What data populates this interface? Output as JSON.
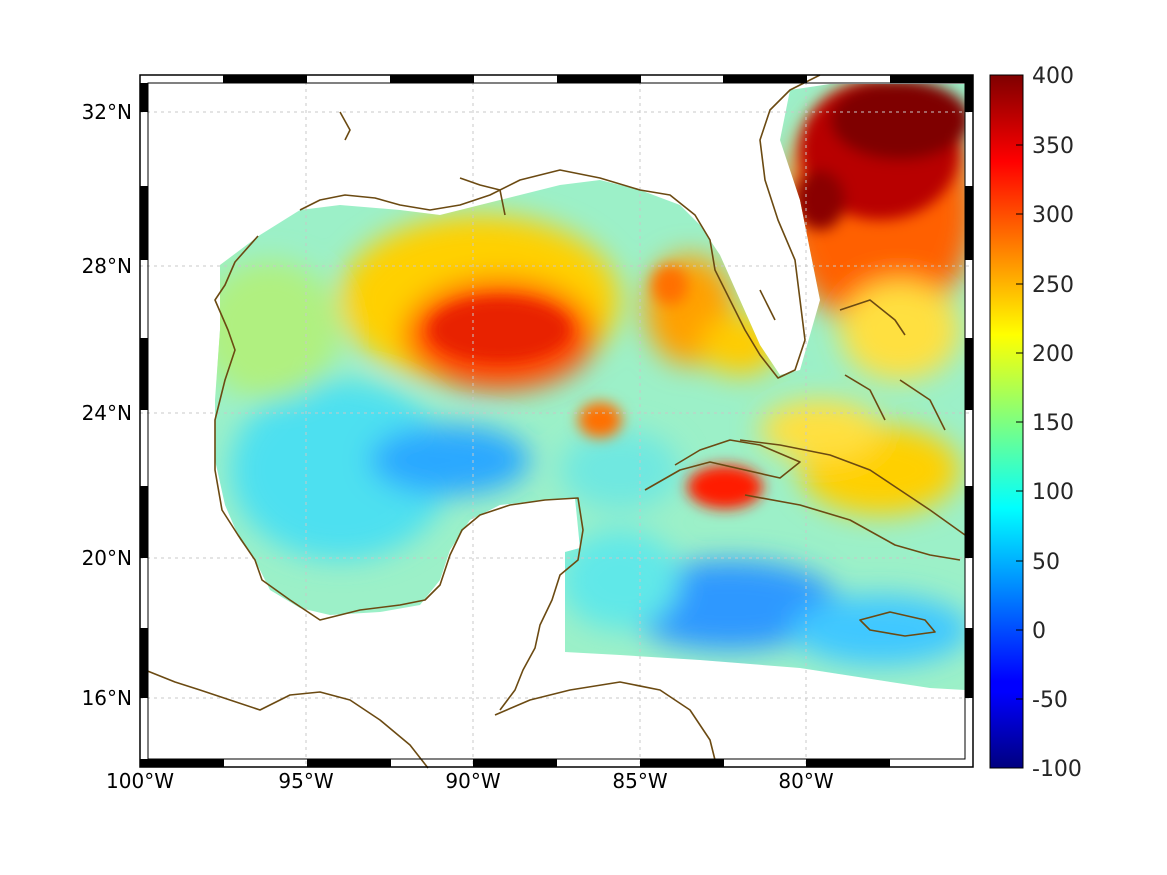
{
  "map": {
    "lon_labels": [
      "100°W",
      "95°W",
      "90°W",
      "85°W",
      "80°W"
    ],
    "lat_labels": [
      "16°N",
      "20°N",
      "24°N",
      "28°N",
      "32°N"
    ],
    "colorbar": {
      "tick_labels": [
        "400",
        "350",
        "300",
        "250",
        "200",
        "150",
        "100",
        "50",
        "0",
        "-50",
        "-100"
      ],
      "range": [
        -100,
        400
      ],
      "colormap": "jet"
    },
    "colors": {
      "coastline": "#6b4a12",
      "grid": "#c8c8c8"
    }
  }
}
